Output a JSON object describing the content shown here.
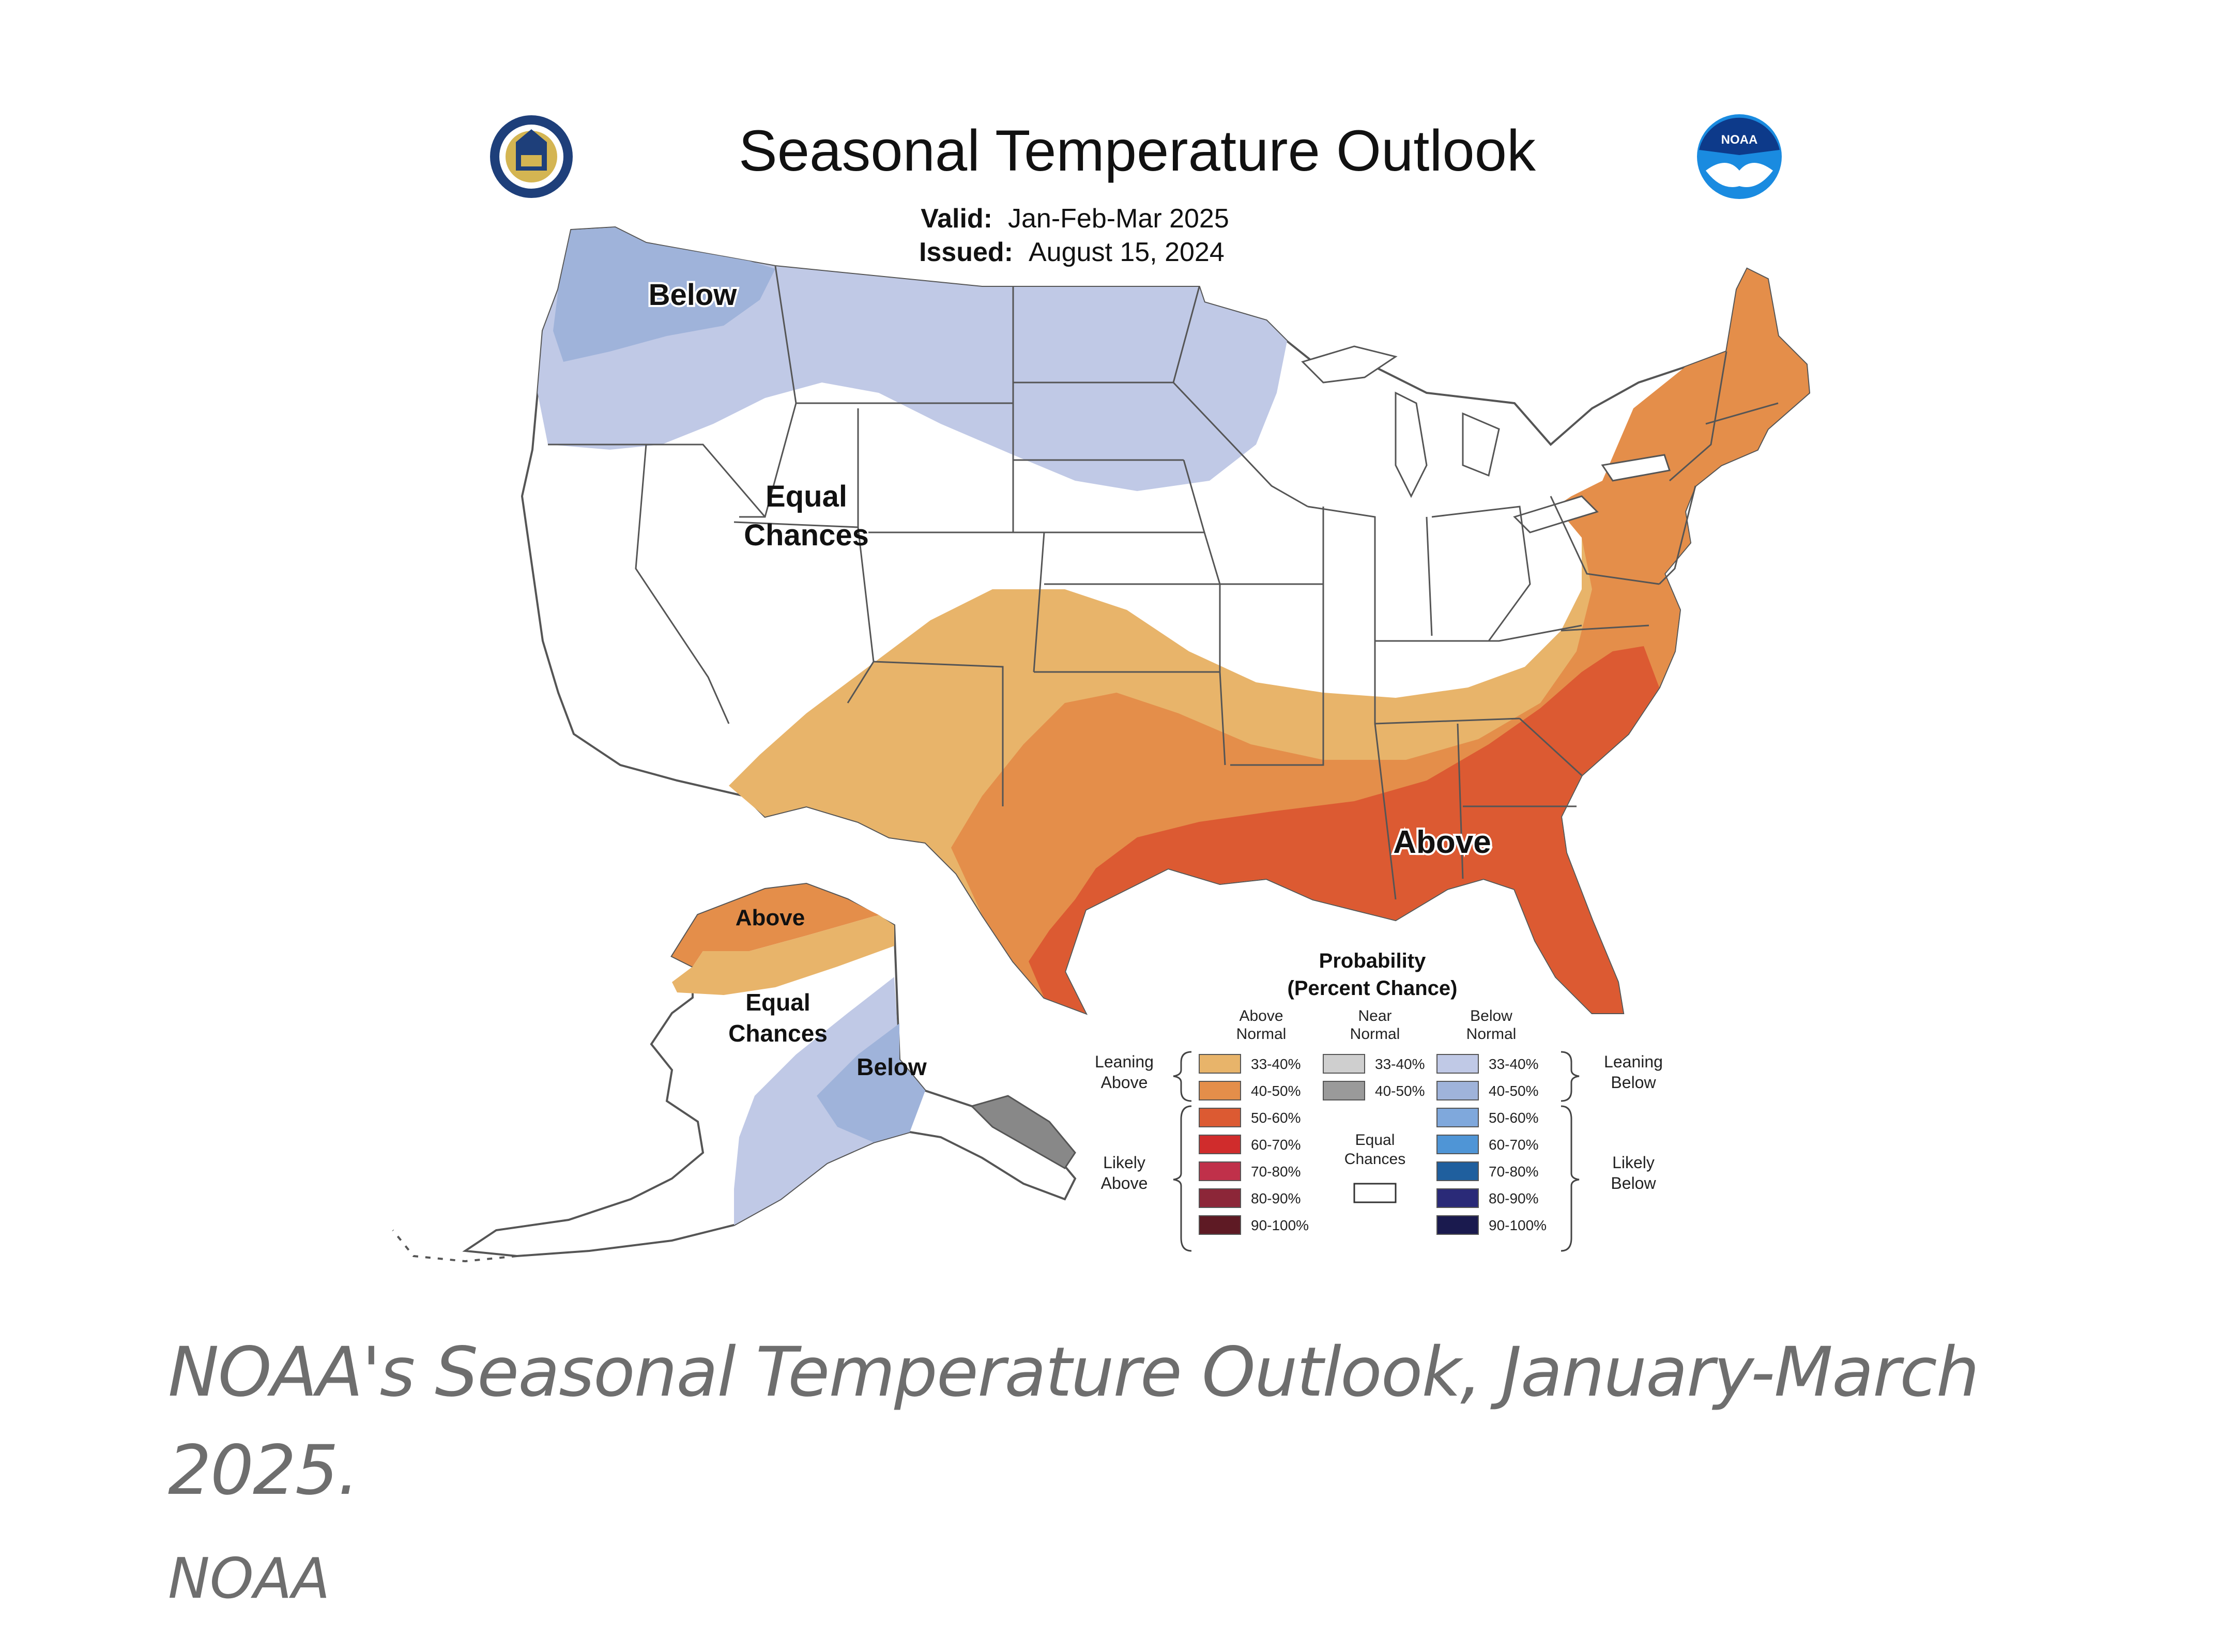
{
  "map": {
    "title": "Seasonal Temperature Outlook",
    "valid_label": "Valid:",
    "valid_value": "Jan-Feb-Mar 2025",
    "issued_label": "Issued:",
    "issued_value": "August 15, 2024",
    "seal_left_icon": "department-of-commerce-seal",
    "seal_right_icon": "noaa-logo",
    "noaa_logo_text": "NOAA",
    "regions": {
      "below_northwest": "Below",
      "equal_chances_line1": "Equal",
      "equal_chances_line2": "Chances",
      "above_southeast": "Above",
      "alaska_above": "Above",
      "alaska_equal_line1": "Equal",
      "alaska_equal_line2": "Chances",
      "alaska_below": "Below"
    },
    "colors": {
      "above_33_40": "#e8b46a",
      "above_40_50": "#e48e4a",
      "above_50_60": "#dc5a32",
      "below_33_40": "#c0c9e6",
      "below_40_50": "#9fb3da",
      "equal": "#ffffff",
      "state_lines": "#555555"
    }
  },
  "legend": {
    "title_line1": "Probability",
    "title_line2": "(Percent Chance)",
    "col_above_1": "Above",
    "col_above_2": "Normal",
    "col_near_1": "Near",
    "col_near_2": "Normal",
    "col_below_1": "Below",
    "col_below_2": "Normal",
    "leaning_above_1": "Leaning",
    "leaning_above_2": "Above",
    "likely_above_1": "Likely",
    "likely_above_2": "Above",
    "leaning_below_1": "Leaning",
    "leaning_below_2": "Below",
    "likely_below_1": "Likely",
    "likely_below_2": "Below",
    "equal_1": "Equal",
    "equal_2": "Chances",
    "above_rows": [
      {
        "label": "33-40%",
        "color": "#e8b46a"
      },
      {
        "label": "40-50%",
        "color": "#e48e4a"
      },
      {
        "label": "50-60%",
        "color": "#dc5a32"
      },
      {
        "label": "60-70%",
        "color": "#d02c2c"
      },
      {
        "label": "70-80%",
        "color": "#c0304a"
      },
      {
        "label": "80-90%",
        "color": "#8c2638"
      },
      {
        "label": "90-100%",
        "color": "#5e1a24"
      }
    ],
    "near_rows": [
      {
        "label": "33-40%",
        "color": "#cfcfcf"
      },
      {
        "label": "40-50%",
        "color": "#9a9a9a"
      }
    ],
    "below_rows": [
      {
        "label": "33-40%",
        "color": "#c0c9e6"
      },
      {
        "label": "40-50%",
        "color": "#9fb3da"
      },
      {
        "label": "50-60%",
        "color": "#7fa8dc"
      },
      {
        "label": "60-70%",
        "color": "#4f95d6"
      },
      {
        "label": "70-80%",
        "color": "#1f5f9e"
      },
      {
        "label": "80-90%",
        "color": "#2a2a78"
      },
      {
        "label": "90-100%",
        "color": "#1a1a4e"
      }
    ]
  },
  "caption": {
    "text": "NOAA's Seasonal Temperature Outlook, January-March 2025.",
    "credit": "NOAA"
  }
}
